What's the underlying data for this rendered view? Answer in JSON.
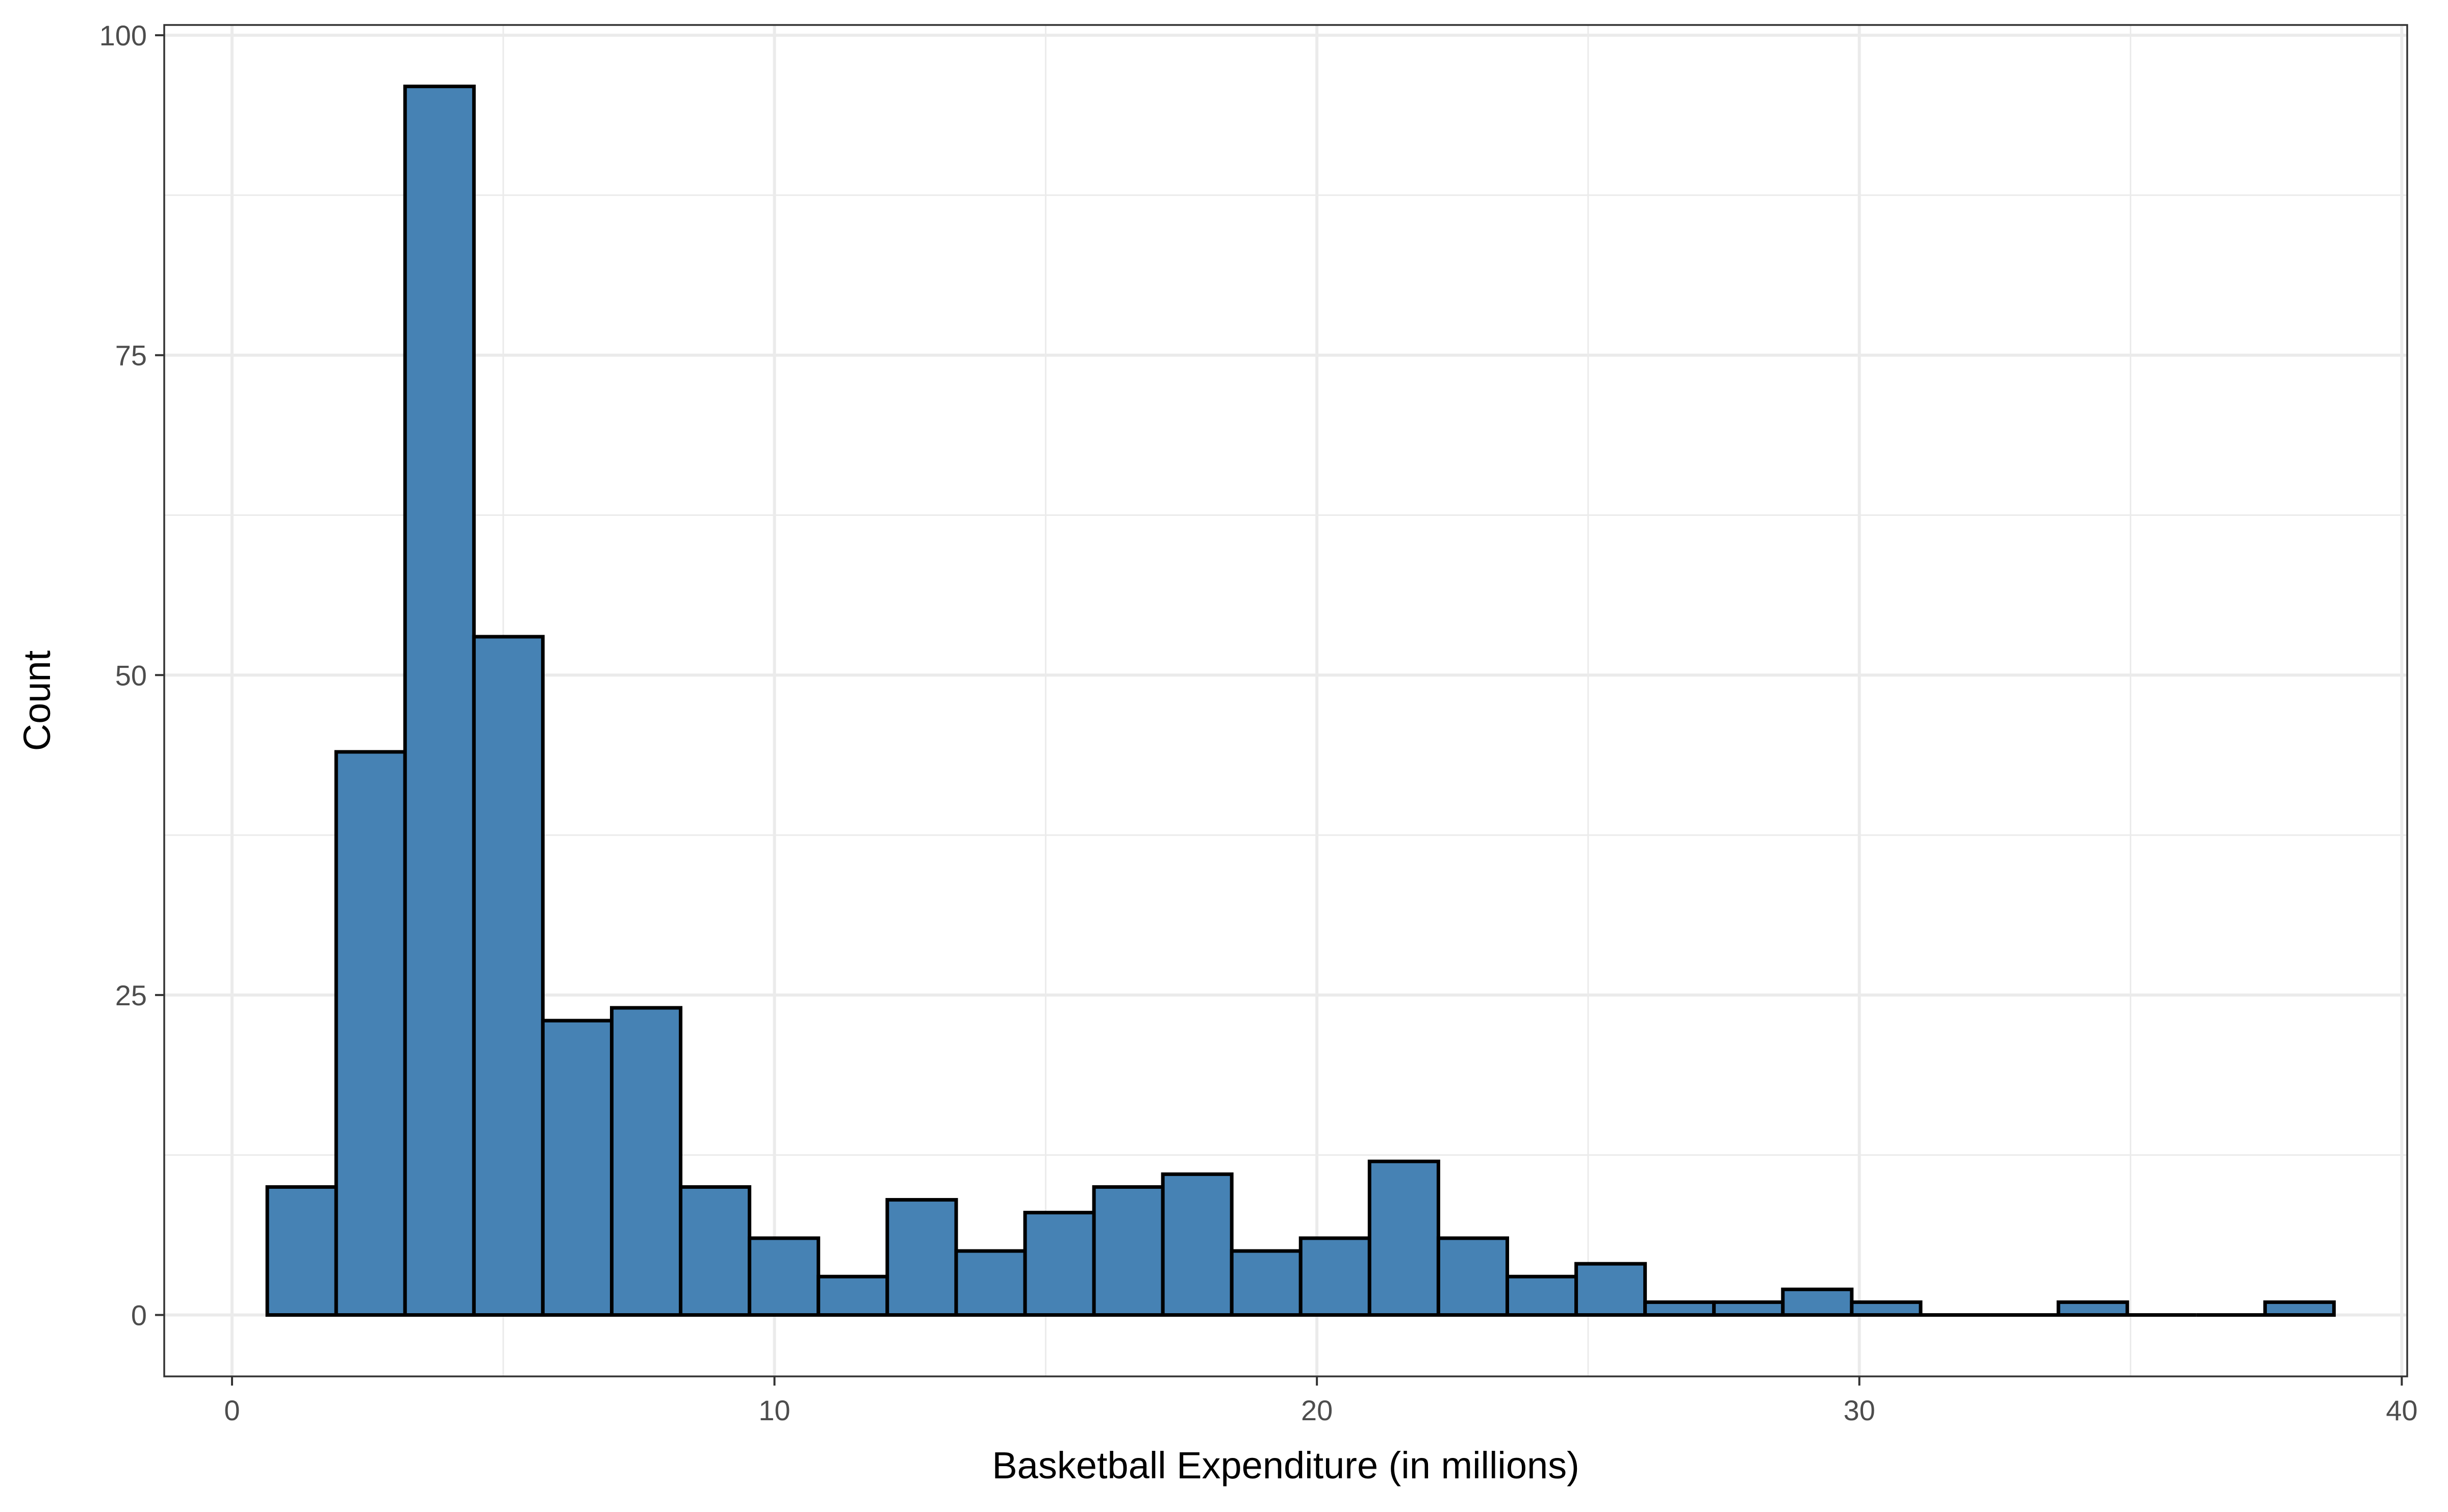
{
  "chart_data": {
    "type": "bar",
    "title": "",
    "xlabel": "Basketball Expenditure (in millions)",
    "ylabel": "Count",
    "xlim": [
      -1.25,
      40.1
    ],
    "ylim": [
      -4.8,
      100.8
    ],
    "x_ticks": [
      0,
      10,
      20,
      30,
      40
    ],
    "y_ticks": [
      0,
      25,
      50,
      75,
      100
    ],
    "y_minor_ticks": [
      12.5,
      37.5,
      62.5,
      87.5
    ],
    "x_minor_ticks": [
      5,
      15,
      25,
      35
    ],
    "grid": true,
    "legend": "none",
    "bins": [
      {
        "x0": 0.65,
        "x1": 1.92,
        "count": 10
      },
      {
        "x0": 1.92,
        "x1": 3.19,
        "count": 44
      },
      {
        "x0": 3.19,
        "x1": 4.46,
        "count": 96
      },
      {
        "x0": 4.46,
        "x1": 5.73,
        "count": 53
      },
      {
        "x0": 5.73,
        "x1": 7.0,
        "count": 23
      },
      {
        "x0": 7.0,
        "x1": 8.27,
        "count": 24
      },
      {
        "x0": 8.27,
        "x1": 9.54,
        "count": 10
      },
      {
        "x0": 9.54,
        "x1": 10.81,
        "count": 6
      },
      {
        "x0": 10.81,
        "x1": 12.08,
        "count": 3
      },
      {
        "x0": 12.08,
        "x1": 13.35,
        "count": 9
      },
      {
        "x0": 13.35,
        "x1": 14.62,
        "count": 5
      },
      {
        "x0": 14.62,
        "x1": 15.89,
        "count": 8
      },
      {
        "x0": 15.89,
        "x1": 17.16,
        "count": 10
      },
      {
        "x0": 17.16,
        "x1": 18.43,
        "count": 11
      },
      {
        "x0": 18.43,
        "x1": 19.7,
        "count": 5
      },
      {
        "x0": 19.7,
        "x1": 20.97,
        "count": 6
      },
      {
        "x0": 20.97,
        "x1": 22.24,
        "count": 12
      },
      {
        "x0": 22.24,
        "x1": 23.51,
        "count": 6
      },
      {
        "x0": 23.51,
        "x1": 24.78,
        "count": 3
      },
      {
        "x0": 24.78,
        "x1": 26.05,
        "count": 4
      },
      {
        "x0": 26.05,
        "x1": 27.32,
        "count": 1
      },
      {
        "x0": 27.32,
        "x1": 28.59,
        "count": 1
      },
      {
        "x0": 28.59,
        "x1": 29.86,
        "count": 2
      },
      {
        "x0": 29.86,
        "x1": 31.13,
        "count": 1
      },
      {
        "x0": 31.13,
        "x1": 32.4,
        "count": 0
      },
      {
        "x0": 32.4,
        "x1": 33.67,
        "count": 0
      },
      {
        "x0": 33.67,
        "x1": 34.94,
        "count": 1
      },
      {
        "x0": 34.94,
        "x1": 36.21,
        "count": 0
      },
      {
        "x0": 36.21,
        "x1": 37.48,
        "count": 0
      },
      {
        "x0": 37.48,
        "x1": 38.75,
        "count": 1
      }
    ],
    "bar_fill": "#4682b4",
    "bar_stroke": "#000000",
    "grid_color": "#ebebeb",
    "panel_border": "#333333"
  }
}
